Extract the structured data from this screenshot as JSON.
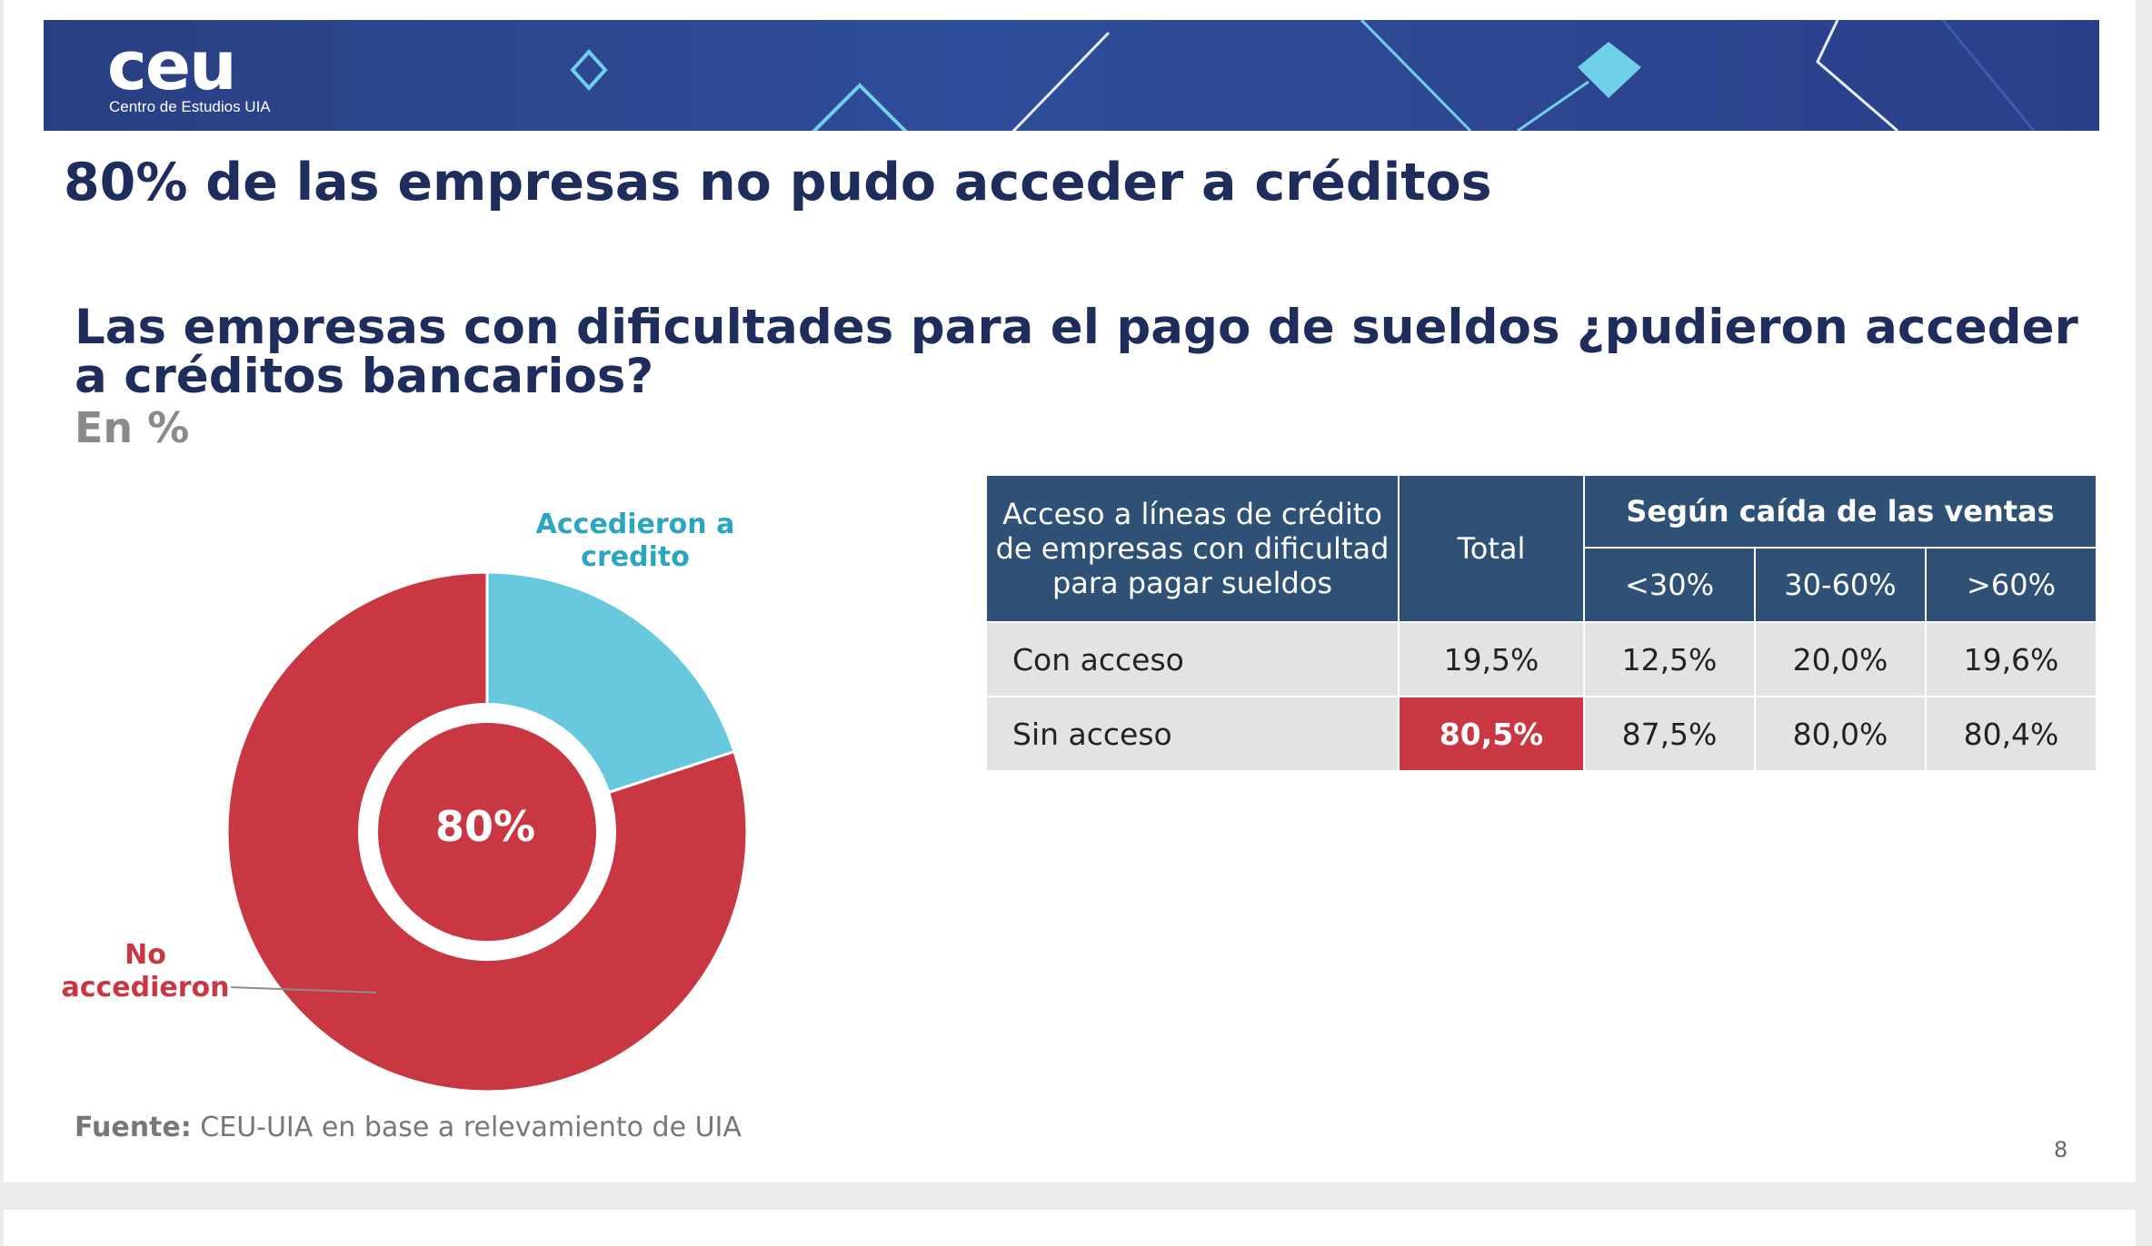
{
  "header": {
    "logo_text": "ceu",
    "logo_subtitle": "Centro de Estudios UIA",
    "brand_color": "#2d4690"
  },
  "title": "80% de las empresas no pudo acceder a créditos",
  "question": "Las empresas con dificultades para el pago de sueldos ¿pudieron acceder a créditos bancarios?",
  "unit": "En %",
  "chart_data": {
    "type": "pie",
    "donut": true,
    "categories": [
      "Accedieron a credito",
      "No accedieron"
    ],
    "values": [
      20,
      80
    ],
    "colors": [
      "#68c8de",
      "#c93842"
    ],
    "center_label": "80%",
    "center_color": "#c93842"
  },
  "donut_labels": {
    "accedieron": "Accedieron a credito",
    "no_accedieron": "No accedieron"
  },
  "table": {
    "header_main": "Acceso a líneas de crédito de empresas con dificultad para pagar sueldos",
    "header_total": "Total",
    "header_group": "Según caída de las ventas",
    "subheaders": [
      "<30%",
      "30-60%",
      ">60%"
    ],
    "rows": [
      {
        "label": "Con acceso",
        "total": "19,5%",
        "values": [
          "12,5%",
          "20,0%",
          "19,6%"
        ]
      },
      {
        "label": "Sin acceso",
        "total": "80,5%",
        "values": [
          "87,5%",
          "80,0%",
          "80,4%"
        ]
      }
    ],
    "header_color": "#2e5175",
    "highlight_color": "#c93842"
  },
  "source": {
    "label": "Fuente:",
    "text": " CEU-UIA en base a relevamiento de UIA"
  },
  "page_number": "8"
}
